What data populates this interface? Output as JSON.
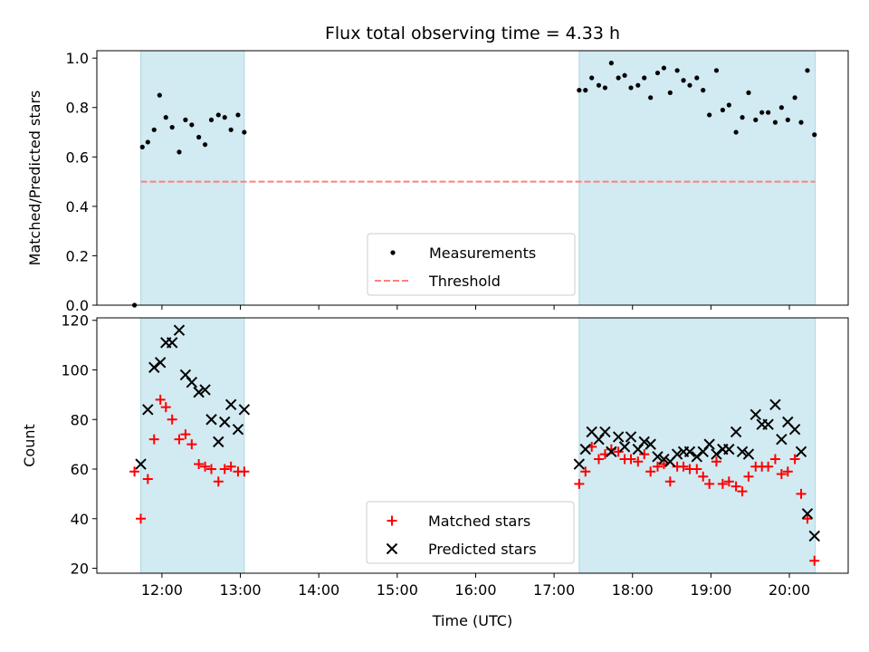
{
  "chart_data": {
    "title": "Flux total observing time = 4.33 h",
    "xlabel": "Time (UTC)",
    "x_unit": "hours UTC",
    "xlim": [
      11.17,
      20.75
    ],
    "xticks": [
      {
        "value": 12,
        "label": "12:00"
      },
      {
        "value": 13,
        "label": "13:00"
      },
      {
        "value": 14,
        "label": "14:00"
      },
      {
        "value": 15,
        "label": "15:00"
      },
      {
        "value": 16,
        "label": "16:00"
      },
      {
        "value": 17,
        "label": "17:00"
      },
      {
        "value": 18,
        "label": "18:00"
      },
      {
        "value": 19,
        "label": "19:00"
      },
      {
        "value": 20,
        "label": "20:00"
      }
    ],
    "shaded_intervals": [
      [
        11.73,
        13.05
      ],
      [
        17.32,
        20.33
      ]
    ],
    "shade_color": "#add8e6",
    "panels": [
      {
        "type": "scatter",
        "ylabel": "Matched/Predicted stars",
        "ylim": [
          0,
          1.03
        ],
        "yticks": [
          {
            "value": 0.0,
            "label": "0.0"
          },
          {
            "value": 0.2,
            "label": "0.2"
          },
          {
            "value": 0.4,
            "label": "0.4"
          },
          {
            "value": 0.6,
            "label": "0.6"
          },
          {
            "value": 0.8,
            "label": "0.8"
          },
          {
            "value": 1.0,
            "label": "1.0"
          }
        ],
        "threshold": {
          "name": "Threshold",
          "value": 0.5,
          "x_range": [
            11.73,
            20.33
          ],
          "color": "#ff7f7f"
        },
        "legend": {
          "position": "lower-center",
          "entries": [
            "Measurements",
            "Threshold"
          ]
        },
        "series": [
          {
            "name": "Measurements",
            "color": "#000000",
            "marker": "dot",
            "x": [
              11.65,
              11.75,
              11.82,
              11.9,
              11.97,
              12.05,
              12.13,
              12.22,
              12.3,
              12.38,
              12.47,
              12.55,
              12.63,
              12.72,
              12.8,
              12.88,
              12.97,
              13.05,
              17.32,
              17.4,
              17.48,
              17.57,
              17.65,
              17.73,
              17.82,
              17.9,
              17.98,
              18.07,
              18.15,
              18.23,
              18.32,
              18.4,
              18.48,
              18.57,
              18.65,
              18.73,
              18.82,
              18.9,
              18.98,
              19.07,
              19.15,
              19.23,
              19.32,
              19.4,
              19.48,
              19.57,
              19.65,
              19.73,
              19.82,
              19.9,
              19.98,
              20.07,
              20.15,
              20.23,
              20.32
            ],
            "y": [
              0.0,
              0.64,
              0.66,
              0.71,
              0.85,
              0.76,
              0.72,
              0.62,
              0.75,
              0.73,
              0.68,
              0.65,
              0.75,
              0.77,
              0.76,
              0.71,
              0.77,
              0.7,
              0.87,
              0.87,
              0.92,
              0.89,
              0.88,
              0.98,
              0.92,
              0.93,
              0.88,
              0.89,
              0.92,
              0.84,
              0.94,
              0.96,
              0.86,
              0.95,
              0.91,
              0.89,
              0.92,
              0.87,
              0.77,
              0.95,
              0.79,
              0.81,
              0.7,
              0.76,
              0.86,
              0.75,
              0.78,
              0.78,
              0.74,
              0.8,
              0.75,
              0.84,
              0.74,
              0.95,
              0.69
            ]
          }
        ]
      },
      {
        "type": "scatter",
        "ylabel": "Count",
        "ylim": [
          18,
          121
        ],
        "yticks": [
          {
            "value": 20,
            "label": "20"
          },
          {
            "value": 40,
            "label": "40"
          },
          {
            "value": 60,
            "label": "60"
          },
          {
            "value": 80,
            "label": "80"
          },
          {
            "value": 100,
            "label": "100"
          },
          {
            "value": 120,
            "label": "120"
          }
        ],
        "legend": {
          "position": "lower-center",
          "entries": [
            "Matched stars",
            "Predicted stars"
          ]
        },
        "series": [
          {
            "name": "Matched stars",
            "color": "#ff0000",
            "marker": "plus",
            "x": [
              11.65,
              11.73,
              11.82,
              11.9,
              11.98,
              12.05,
              12.13,
              12.22,
              12.3,
              12.38,
              12.47,
              12.55,
              12.63,
              12.72,
              12.8,
              12.88,
              12.97,
              13.05,
              17.32,
              17.4,
              17.48,
              17.57,
              17.65,
              17.73,
              17.82,
              17.9,
              17.98,
              18.07,
              18.15,
              18.23,
              18.32,
              18.4,
              18.48,
              18.57,
              18.65,
              18.73,
              18.82,
              18.9,
              18.98,
              19.07,
              19.15,
              19.23,
              19.32,
              19.4,
              19.48,
              19.57,
              19.65,
              19.73,
              19.82,
              19.9,
              19.98,
              20.07,
              20.15,
              20.23,
              20.32
            ],
            "y": [
              59,
              40,
              56,
              72,
              88,
              85,
              80,
              72,
              74,
              70,
              62,
              61,
              60,
              55,
              60,
              61,
              59,
              59,
              54,
              59,
              69,
              64,
              66,
              68,
              67,
              64,
              64,
              63,
              66,
              59,
              61,
              62,
              55,
              61,
              61,
              60,
              60,
              57,
              54,
              63,
              54,
              55,
              53,
              51,
              57,
              61,
              61,
              61,
              64,
              58,
              59,
              64,
              50,
              40,
              23
            ]
          },
          {
            "name": "Predicted stars",
            "color": "#000000",
            "marker": "cross",
            "x": [
              11.73,
              11.82,
              11.9,
              11.98,
              12.05,
              12.13,
              12.22,
              12.3,
              12.38,
              12.47,
              12.55,
              12.63,
              12.72,
              12.8,
              12.88,
              12.97,
              13.05,
              17.32,
              17.4,
              17.48,
              17.57,
              17.65,
              17.73,
              17.82,
              17.9,
              17.98,
              18.07,
              18.15,
              18.23,
              18.32,
              18.4,
              18.48,
              18.57,
              18.65,
              18.73,
              18.82,
              18.9,
              18.98,
              19.07,
              19.15,
              19.23,
              19.32,
              19.4,
              19.48,
              19.57,
              19.65,
              19.73,
              19.82,
              19.9,
              19.98,
              20.07,
              20.15,
              20.23,
              20.32
            ],
            "y": [
              62,
              84,
              101,
              103,
              111,
              111,
              116,
              98,
              95,
              91,
              92,
              80,
              71,
              79,
              86,
              76,
              84,
              62,
              68,
              75,
              72,
              75,
              67,
              73,
              69,
              73,
              68,
              71,
              70,
              65,
              64,
              63,
              66,
              67,
              67,
              65,
              67,
              70,
              66,
              68,
              68,
              75,
              67,
              66,
              82,
              78,
              78,
              86,
              72,
              79,
              76,
              67,
              42,
              33
            ]
          }
        ]
      }
    ]
  }
}
